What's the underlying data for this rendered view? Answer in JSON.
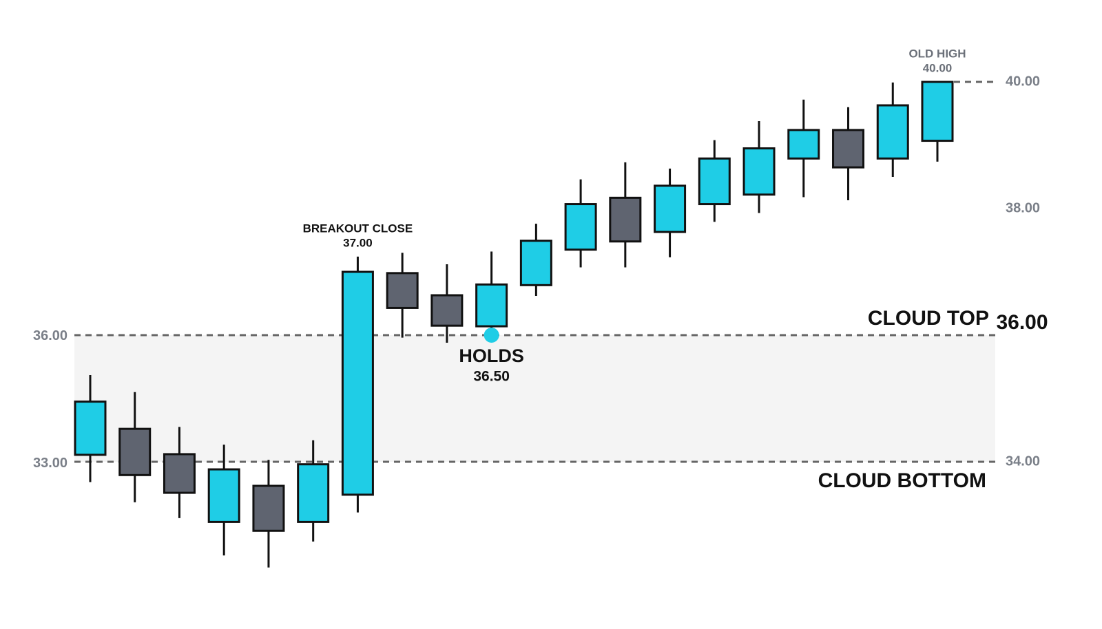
{
  "chart_data": {
    "type": "candlestick",
    "up_color": "#1fcde6",
    "down_color": "#5f6470",
    "open": [
      34.11,
      34.52,
      34.12,
      33.05,
      33.62,
      33.05,
      33.48,
      36.98,
      36.63,
      36.14,
      36.79,
      37.35,
      38.17,
      37.63,
      38.07,
      38.22,
      38.79,
      39.24,
      38.79,
      39.07
    ],
    "high": [
      35.37,
      35.1,
      34.55,
      34.27,
      34.03,
      34.34,
      37.24,
      37.3,
      37.12,
      37.32,
      37.76,
      38.46,
      38.73,
      38.63,
      39.08,
      39.38,
      39.72,
      39.6,
      39.99,
      40.0
    ],
    "low": [
      33.68,
      33.36,
      33.11,
      32.52,
      32.33,
      32.74,
      33.2,
      35.96,
      35.88,
      36.08,
      36.62,
      37.07,
      37.07,
      37.23,
      37.79,
      37.93,
      38.18,
      38.13,
      38.5,
      38.74
    ],
    "close": [
      34.95,
      33.79,
      33.51,
      33.88,
      32.91,
      33.96,
      37.0,
      36.43,
      36.15,
      36.8,
      37.49,
      38.07,
      37.48,
      38.36,
      38.79,
      38.95,
      39.24,
      38.65,
      39.63,
      40.0
    ],
    "ylim": [
      32,
      41
    ],
    "yticks": [
      {
        "value": 34,
        "label": "34.00"
      },
      {
        "value": 38,
        "label": "38.00"
      },
      {
        "value": 40,
        "label": "40.00"
      }
    ],
    "y2lim": [
      30.06,
      43.49
    ],
    "y2ticks": [
      {
        "value": 33,
        "label": "33.00"
      },
      {
        "value": 36,
        "label": "36.00"
      }
    ],
    "cloud": {
      "top": {
        "name": "CLOUD TOP",
        "value": 36,
        "value_label": "36.00"
      },
      "bottom": {
        "name": "CLOUD BOTTOM",
        "value": 34
      }
    },
    "old_high": {
      "name": "OLD HIGH",
      "value": 40,
      "value_label": "40.00"
    },
    "breakout": {
      "name": "BREAKOUT CLOSE",
      "value": 37,
      "value_label": "37.00"
    },
    "holds": {
      "name": "HOLDS",
      "value": 36.5,
      "value_label": "36.50"
    }
  }
}
